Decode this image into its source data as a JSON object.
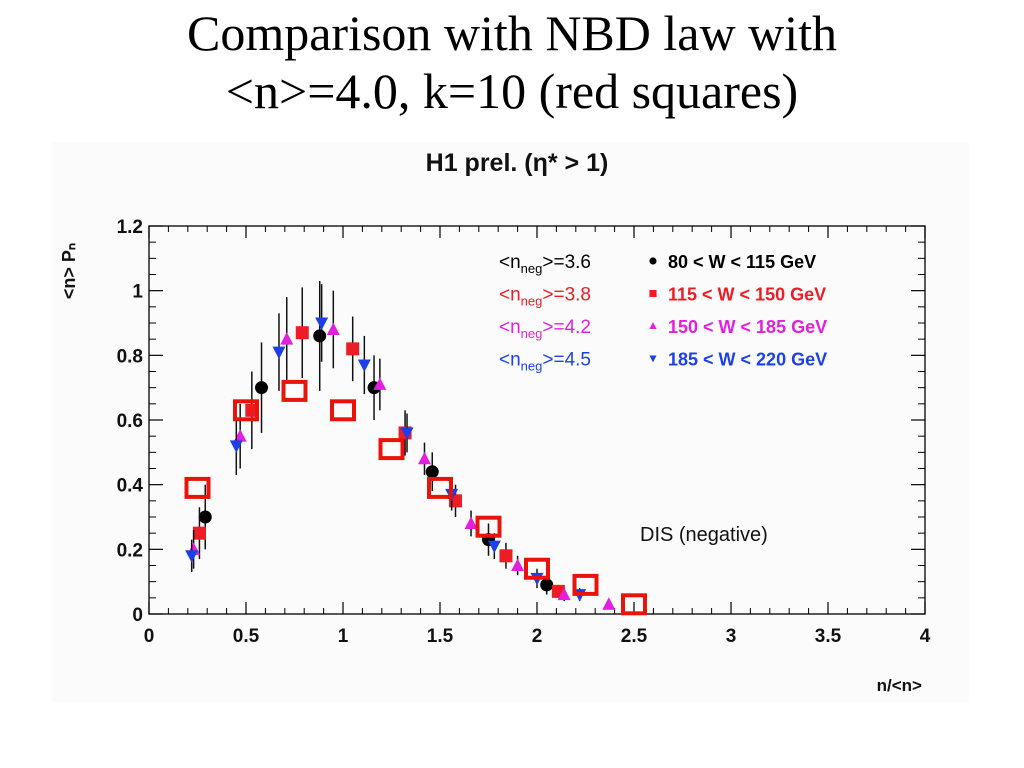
{
  "slide": {
    "title_line1": "Comparison with NBD law with",
    "title_line2": "<n>=4.0, k=10 (red squares)"
  },
  "chart_data": {
    "type": "scatter",
    "title": "H1 prel. (η* > 1)",
    "xlabel": "n/<n>",
    "ylabel": "<n> Pₙ",
    "xlim": [
      0,
      4
    ],
    "ylim": [
      0,
      1.2
    ],
    "x_ticks": [
      "0",
      "0.5",
      "1",
      "1.5",
      "2",
      "2.5",
      "3",
      "3.5",
      "4"
    ],
    "y_ticks": [
      "0",
      "0.2",
      "0.4",
      "0.6",
      "0.8",
      "1",
      "1.2"
    ],
    "grid": false,
    "legend_position": "top-right",
    "annotation": "DIS (negative)",
    "series": [
      {
        "name": "80 < W < 115 GeV",
        "mean_label": "<n_neg>=3.6",
        "marker": "circle",
        "color": "#000000",
        "x": [
          0.29,
          0.58,
          0.88,
          1.16,
          1.46,
          1.75,
          2.05
        ],
        "y": [
          0.3,
          0.7,
          0.86,
          0.7,
          0.44,
          0.23,
          0.09
        ],
        "err": [
          0.1,
          0.14,
          0.17,
          0.1,
          0.06,
          0.05,
          0.03
        ]
      },
      {
        "name": "115 < W < 150 GeV",
        "mean_label": "<n_neg>=3.8",
        "marker": "square",
        "color": "#ee1c25",
        "x": [
          0.26,
          0.53,
          0.79,
          1.05,
          1.32,
          1.58,
          1.84,
          2.11
        ],
        "y": [
          0.25,
          0.63,
          0.87,
          0.82,
          0.56,
          0.35,
          0.18,
          0.07
        ],
        "err": [
          0.08,
          0.12,
          0.14,
          0.1,
          0.07,
          0.05,
          0.04,
          0.02
        ]
      },
      {
        "name": "150 < W < 185 GeV",
        "mean_label": "<n_neg>=4.2",
        "marker": "triangle-up",
        "color": "#e21fdc",
        "x": [
          0.23,
          0.47,
          0.71,
          0.95,
          1.19,
          1.42,
          1.66,
          1.9,
          2.14,
          2.37
        ],
        "y": [
          0.2,
          0.55,
          0.85,
          0.88,
          0.71,
          0.48,
          0.28,
          0.15,
          0.06,
          0.03
        ],
        "err": [
          0.06,
          0.1,
          0.13,
          0.12,
          0.08,
          0.05,
          0.04,
          0.03,
          0.02,
          0.01
        ]
      },
      {
        "name": "185 < W < 220 GeV",
        "mean_label": "<n_neg>=4.5",
        "marker": "triangle-down",
        "color": "#1c40e6",
        "x": [
          0.22,
          0.45,
          0.67,
          0.89,
          1.11,
          1.33,
          1.56,
          1.78,
          2.0,
          2.22
        ],
        "y": [
          0.18,
          0.52,
          0.81,
          0.9,
          0.77,
          0.56,
          0.37,
          0.21,
          0.11,
          0.06
        ],
        "err": [
          0.05,
          0.09,
          0.12,
          0.12,
          0.09,
          0.06,
          0.05,
          0.04,
          0.03,
          0.02
        ]
      },
      {
        "name": "NBD <n>=4.0, k=10",
        "marker": "open-square",
        "color": "#e8140c",
        "x": [
          0.25,
          0.5,
          0.75,
          1.0,
          1.25,
          1.5,
          1.75,
          2.0,
          2.25,
          2.5
        ],
        "y": [
          0.39,
          0.63,
          0.69,
          0.63,
          0.51,
          0.39,
          0.27,
          0.14,
          0.09,
          0.03
        ]
      }
    ]
  }
}
